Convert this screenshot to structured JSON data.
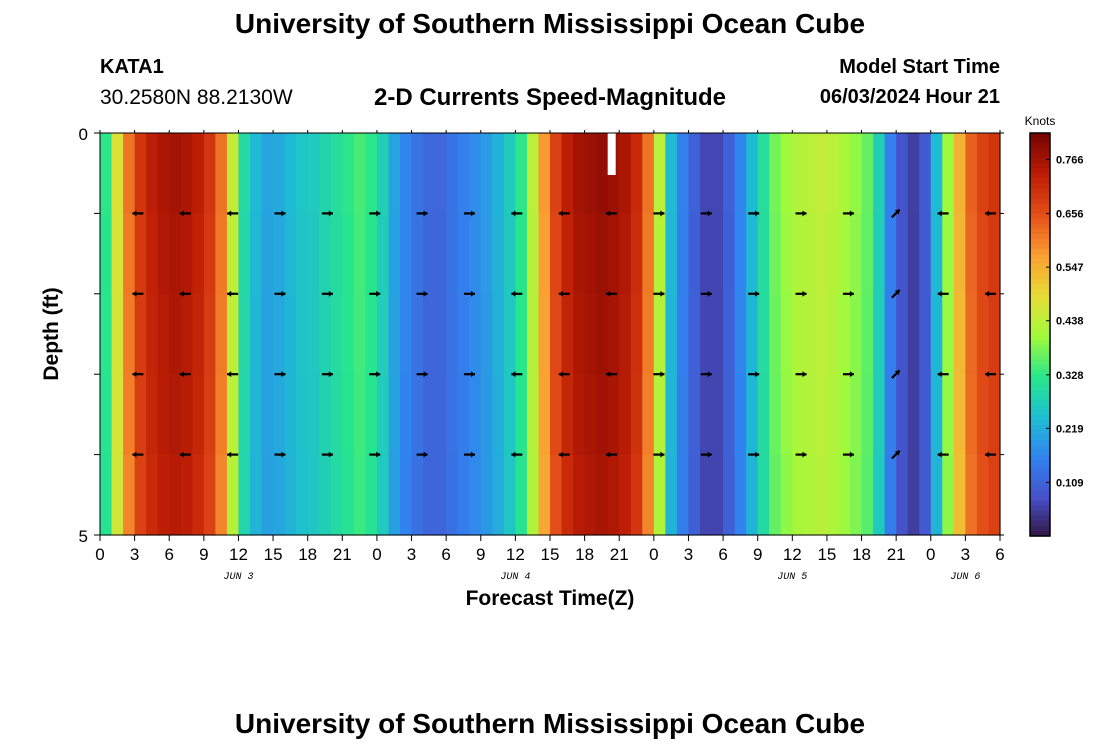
{
  "page": {
    "title": "University of Southern Mississippi Ocean Cube",
    "station": "KATA1",
    "coordinates": "30.2580N  88.2130W",
    "subtitle": "2-D Currents Speed-Magnitude",
    "model_start_label": "Model Start Time",
    "model_start_value": "06/03/2024 Hour 21",
    "footer_title": "University of Southern Mississippi Ocean Cube"
  },
  "chart_data": {
    "type": "heatmap",
    "title": "2-D Currents Speed-Magnitude",
    "xlabel": "Forecast Time(Z)",
    "ylabel": "Depth (ft)",
    "xlim": [
      0,
      78
    ],
    "ylim": [
      0,
      5
    ],
    "x_tick_labels": [
      "0",
      "3",
      "6",
      "9",
      "12",
      "15",
      "18",
      "21",
      "0",
      "3",
      "6",
      "9",
      "12",
      "15",
      "18",
      "21",
      "0",
      "3",
      "6",
      "9",
      "12",
      "15",
      "18",
      "21",
      "0",
      "3",
      "6"
    ],
    "y_tick_labels": [
      "0",
      "5"
    ],
    "day_labels": [
      {
        "text": "JUN 3",
        "hour": 12
      },
      {
        "text": "JUN 4",
        "hour": 36
      },
      {
        "text": "JUN 5",
        "hour": 60
      },
      {
        "text": "JUN 6",
        "hour": 75
      }
    ],
    "colorbar": {
      "title": "Knots",
      "min": 0.0,
      "max": 0.82,
      "tick_values": [
        "0.766",
        "0.656",
        "0.547",
        "0.438",
        "0.328",
        "0.219",
        "0.109"
      ]
    },
    "depth_layers": 5,
    "speed_by_hour_knots": [
      0.33,
      0.48,
      0.62,
      0.7,
      0.74,
      0.76,
      0.77,
      0.76,
      0.74,
      0.7,
      0.62,
      0.45,
      0.3,
      0.24,
      0.21,
      0.22,
      0.24,
      0.26,
      0.27,
      0.29,
      0.31,
      0.33,
      0.35,
      0.33,
      0.28,
      0.21,
      0.17,
      0.14,
      0.12,
      0.12,
      0.14,
      0.16,
      0.18,
      0.2,
      0.23,
      0.27,
      0.33,
      0.44,
      0.58,
      0.68,
      0.74,
      0.77,
      0.78,
      0.79,
      0.78,
      0.76,
      0.72,
      0.62,
      0.44,
      0.24,
      0.16,
      0.11,
      0.07,
      0.07,
      0.11,
      0.17,
      0.24,
      0.31,
      0.38,
      0.41,
      0.43,
      0.44,
      0.45,
      0.44,
      0.42,
      0.4,
      0.37,
      0.28,
      0.16,
      0.09,
      0.06,
      0.1,
      0.24,
      0.41,
      0.55,
      0.64,
      0.68,
      0.7
    ],
    "vectors": {
      "hours": [
        4,
        8,
        12,
        18,
        22,
        26,
        30,
        34,
        38,
        42,
        46,
        50,
        54,
        58,
        62,
        66,
        70,
        74,
        78
      ],
      "row_fractions": [
        0.2,
        0.4,
        0.6,
        0.8
      ],
      "directions_deg": [
        180,
        180,
        180,
        0,
        0,
        0,
        0,
        0,
        180,
        180,
        180,
        0,
        0,
        0,
        0,
        0,
        45,
        180,
        180
      ]
    }
  }
}
